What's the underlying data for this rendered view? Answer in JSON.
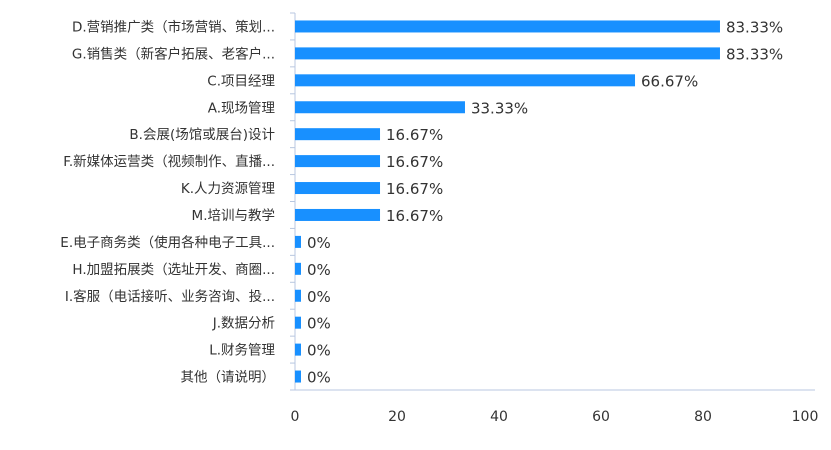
{
  "chart_data": {
    "type": "bar",
    "orientation": "horizontal",
    "categories": [
      "D.营销推广类（市场营销、策划...",
      "G.销售类（新客户拓展、老客户...",
      "C.项目经理",
      "A.现场管理",
      "B.会展(场馆或展台)设计",
      "F.新媒体运营类（视频制作、直播...",
      "K.人力资源管理",
      "M.培训与教学",
      "E.电子商务类（使用各种电子工具...",
      "H.加盟拓展类（选址开发、商圈...",
      "I.客服（电话接听、业务咨询、投...",
      "J.数据分析",
      "L.财务管理",
      "其他（请说明）"
    ],
    "values": [
      83.33,
      83.33,
      66.67,
      33.33,
      16.67,
      16.67,
      16.67,
      16.67,
      0,
      0,
      0,
      0,
      0,
      0
    ],
    "data_labels": [
      "83.33%",
      "83.33%",
      "66.67%",
      "33.33%",
      "16.67%",
      "16.67%",
      "16.67%",
      "16.67%",
      "0%",
      "0%",
      "0%",
      "0%",
      "0%",
      "0%"
    ],
    "xlim": [
      0,
      100
    ],
    "x_ticks": [
      "0",
      "20",
      "40",
      "60",
      "80",
      "100"
    ],
    "grid": false,
    "bar_color": "#1890ff",
    "title": "",
    "xlabel": "",
    "ylabel": ""
  }
}
